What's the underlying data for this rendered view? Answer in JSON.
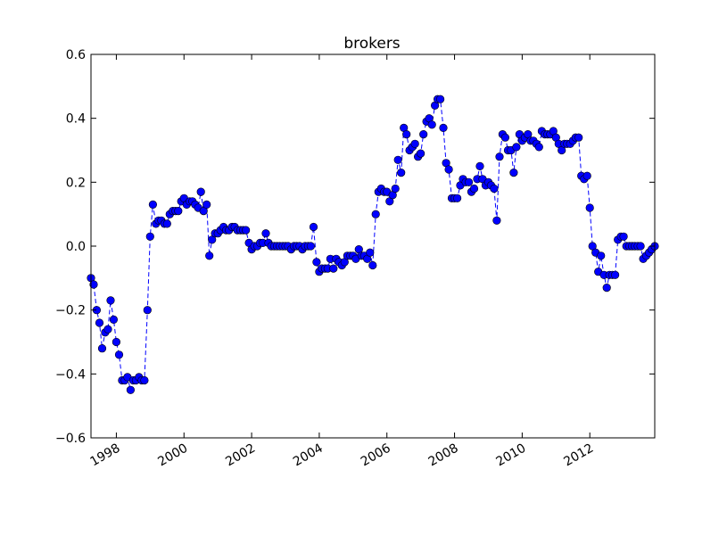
{
  "chart_data": {
    "type": "line",
    "title": "brokers",
    "xlabel": "",
    "ylabel": "",
    "xlim": [
      1997.25,
      2013.92
    ],
    "ylim": [
      -0.6,
      0.6
    ],
    "yticks": [
      -0.6,
      -0.4,
      -0.2,
      0.0,
      0.2,
      0.4,
      0.6
    ],
    "ytick_labels": [
      "−0.6",
      "−0.4",
      "−0.2",
      "0.0",
      "0.2",
      "0.4",
      "0.6"
    ],
    "xticks": [
      1998,
      2000,
      2002,
      2004,
      2006,
      2008,
      2010,
      2012
    ],
    "xtick_labels": [
      "1998",
      "2000",
      "2002",
      "2004",
      "2006",
      "2008",
      "2010",
      "2012"
    ],
    "grid": false,
    "legend": "none",
    "colors": {
      "series": "#0000ff",
      "edge": "#000000"
    },
    "series": [
      {
        "line_style": "dashed",
        "marker": "circle",
        "points": [
          [
            1997.25,
            -0.1
          ],
          [
            1997.33,
            -0.12
          ],
          [
            1997.42,
            -0.2
          ],
          [
            1997.5,
            -0.24
          ],
          [
            1997.58,
            -0.32
          ],
          [
            1997.67,
            -0.27
          ],
          [
            1997.75,
            -0.26
          ],
          [
            1997.83,
            -0.17
          ],
          [
            1997.92,
            -0.23
          ],
          [
            1998.0,
            -0.3
          ],
          [
            1998.08,
            -0.34
          ],
          [
            1998.17,
            -0.42
          ],
          [
            1998.25,
            -0.42
          ],
          [
            1998.33,
            -0.41
          ],
          [
            1998.42,
            -0.45
          ],
          [
            1998.5,
            -0.42
          ],
          [
            1998.58,
            -0.42
          ],
          [
            1998.67,
            -0.41
          ],
          [
            1998.75,
            -0.42
          ],
          [
            1998.83,
            -0.42
          ],
          [
            1998.92,
            -0.2
          ],
          [
            1999.0,
            0.03
          ],
          [
            1999.08,
            0.13
          ],
          [
            1999.17,
            0.07
          ],
          [
            1999.25,
            0.08
          ],
          [
            1999.33,
            0.08
          ],
          [
            1999.42,
            0.07
          ],
          [
            1999.5,
            0.07
          ],
          [
            1999.58,
            0.1
          ],
          [
            1999.67,
            0.11
          ],
          [
            1999.75,
            0.11
          ],
          [
            1999.83,
            0.11
          ],
          [
            1999.92,
            0.14
          ],
          [
            2000.0,
            0.15
          ],
          [
            2000.08,
            0.13
          ],
          [
            2000.17,
            0.14
          ],
          [
            2000.25,
            0.14
          ],
          [
            2000.33,
            0.13
          ],
          [
            2000.42,
            0.12
          ],
          [
            2000.5,
            0.17
          ],
          [
            2000.58,
            0.11
          ],
          [
            2000.67,
            0.13
          ],
          [
            2000.75,
            -0.03
          ],
          [
            2000.83,
            0.02
          ],
          [
            2000.92,
            0.04
          ],
          [
            2001.0,
            0.04
          ],
          [
            2001.08,
            0.05
          ],
          [
            2001.17,
            0.06
          ],
          [
            2001.25,
            0.05
          ],
          [
            2001.33,
            0.05
          ],
          [
            2001.42,
            0.06
          ],
          [
            2001.5,
            0.06
          ],
          [
            2001.58,
            0.05
          ],
          [
            2001.67,
            0.05
          ],
          [
            2001.75,
            0.05
          ],
          [
            2001.83,
            0.05
          ],
          [
            2001.92,
            0.01
          ],
          [
            2002.0,
            -0.01
          ],
          [
            2002.08,
            0.0
          ],
          [
            2002.17,
            0.0
          ],
          [
            2002.25,
            0.01
          ],
          [
            2002.33,
            0.01
          ],
          [
            2002.42,
            0.04
          ],
          [
            2002.5,
            0.01
          ],
          [
            2002.58,
            0.0
          ],
          [
            2002.67,
            0.0
          ],
          [
            2002.75,
            0.0
          ],
          [
            2002.83,
            0.0
          ],
          [
            2002.92,
            0.0
          ],
          [
            2003.0,
            0.0
          ],
          [
            2003.08,
            0.0
          ],
          [
            2003.17,
            -0.01
          ],
          [
            2003.25,
            0.0
          ],
          [
            2003.33,
            0.0
          ],
          [
            2003.42,
            0.0
          ],
          [
            2003.5,
            -0.01
          ],
          [
            2003.58,
            0.0
          ],
          [
            2003.67,
            0.0
          ],
          [
            2003.75,
            0.0
          ],
          [
            2003.83,
            0.06
          ],
          [
            2003.92,
            -0.05
          ],
          [
            2004.0,
            -0.08
          ],
          [
            2004.08,
            -0.07
          ],
          [
            2004.17,
            -0.07
          ],
          [
            2004.25,
            -0.07
          ],
          [
            2004.33,
            -0.04
          ],
          [
            2004.42,
            -0.07
          ],
          [
            2004.5,
            -0.04
          ],
          [
            2004.58,
            -0.05
          ],
          [
            2004.67,
            -0.06
          ],
          [
            2004.75,
            -0.05
          ],
          [
            2004.83,
            -0.03
          ],
          [
            2004.92,
            -0.03
          ],
          [
            2005.0,
            -0.03
          ],
          [
            2005.08,
            -0.04
          ],
          [
            2005.17,
            -0.01
          ],
          [
            2005.25,
            -0.03
          ],
          [
            2005.33,
            -0.03
          ],
          [
            2005.42,
            -0.04
          ],
          [
            2005.5,
            -0.02
          ],
          [
            2005.58,
            -0.06
          ],
          [
            2005.67,
            0.1
          ],
          [
            2005.75,
            0.17
          ],
          [
            2005.83,
            0.18
          ],
          [
            2005.92,
            0.17
          ],
          [
            2006.0,
            0.17
          ],
          [
            2006.08,
            0.14
          ],
          [
            2006.17,
            0.16
          ],
          [
            2006.25,
            0.18
          ],
          [
            2006.33,
            0.27
          ],
          [
            2006.42,
            0.23
          ],
          [
            2006.5,
            0.37
          ],
          [
            2006.58,
            0.35
          ],
          [
            2006.67,
            0.3
          ],
          [
            2006.75,
            0.31
          ],
          [
            2006.83,
            0.32
          ],
          [
            2006.92,
            0.28
          ],
          [
            2007.0,
            0.29
          ],
          [
            2007.08,
            0.35
          ],
          [
            2007.17,
            0.39
          ],
          [
            2007.25,
            0.4
          ],
          [
            2007.33,
            0.38
          ],
          [
            2007.42,
            0.44
          ],
          [
            2007.5,
            0.46
          ],
          [
            2007.58,
            0.46
          ],
          [
            2007.67,
            0.37
          ],
          [
            2007.75,
            0.26
          ],
          [
            2007.83,
            0.24
          ],
          [
            2007.92,
            0.15
          ],
          [
            2008.0,
            0.15
          ],
          [
            2008.08,
            0.15
          ],
          [
            2008.17,
            0.19
          ],
          [
            2008.25,
            0.21
          ],
          [
            2008.33,
            0.2
          ],
          [
            2008.42,
            0.2
          ],
          [
            2008.5,
            0.17
          ],
          [
            2008.58,
            0.18
          ],
          [
            2008.67,
            0.21
          ],
          [
            2008.75,
            0.25
          ],
          [
            2008.83,
            0.21
          ],
          [
            2008.92,
            0.19
          ],
          [
            2009.0,
            0.2
          ],
          [
            2009.08,
            0.19
          ],
          [
            2009.17,
            0.18
          ],
          [
            2009.25,
            0.08
          ],
          [
            2009.33,
            0.28
          ],
          [
            2009.42,
            0.35
          ],
          [
            2009.5,
            0.34
          ],
          [
            2009.58,
            0.3
          ],
          [
            2009.67,
            0.3
          ],
          [
            2009.75,
            0.23
          ],
          [
            2009.83,
            0.31
          ],
          [
            2009.92,
            0.35
          ],
          [
            2010.0,
            0.33
          ],
          [
            2010.08,
            0.34
          ],
          [
            2010.17,
            0.35
          ],
          [
            2010.25,
            0.33
          ],
          [
            2010.33,
            0.33
          ],
          [
            2010.42,
            0.32
          ],
          [
            2010.5,
            0.31
          ],
          [
            2010.58,
            0.36
          ],
          [
            2010.67,
            0.35
          ],
          [
            2010.75,
            0.35
          ],
          [
            2010.83,
            0.35
          ],
          [
            2010.92,
            0.36
          ],
          [
            2011.0,
            0.34
          ],
          [
            2011.08,
            0.32
          ],
          [
            2011.17,
            0.3
          ],
          [
            2011.25,
            0.32
          ],
          [
            2011.33,
            0.32
          ],
          [
            2011.42,
            0.32
          ],
          [
            2011.5,
            0.33
          ],
          [
            2011.58,
            0.34
          ],
          [
            2011.67,
            0.34
          ],
          [
            2011.75,
            0.22
          ],
          [
            2011.83,
            0.21
          ],
          [
            2011.92,
            0.22
          ],
          [
            2012.0,
            0.12
          ],
          [
            2012.08,
            0.0
          ],
          [
            2012.17,
            -0.02
          ],
          [
            2012.25,
            -0.08
          ],
          [
            2012.33,
            -0.03
          ],
          [
            2012.42,
            -0.09
          ],
          [
            2012.5,
            -0.13
          ],
          [
            2012.58,
            -0.09
          ],
          [
            2012.67,
            -0.09
          ],
          [
            2012.75,
            -0.09
          ],
          [
            2012.83,
            0.02
          ],
          [
            2012.92,
            0.03
          ],
          [
            2013.0,
            0.03
          ],
          [
            2013.08,
            0.0
          ],
          [
            2013.17,
            0.0
          ],
          [
            2013.25,
            0.0
          ],
          [
            2013.33,
            0.0
          ],
          [
            2013.42,
            0.0
          ],
          [
            2013.5,
            0.0
          ],
          [
            2013.58,
            -0.04
          ],
          [
            2013.67,
            -0.03
          ],
          [
            2013.75,
            -0.02
          ],
          [
            2013.83,
            -0.01
          ],
          [
            2013.92,
            0.0
          ]
        ]
      }
    ]
  }
}
